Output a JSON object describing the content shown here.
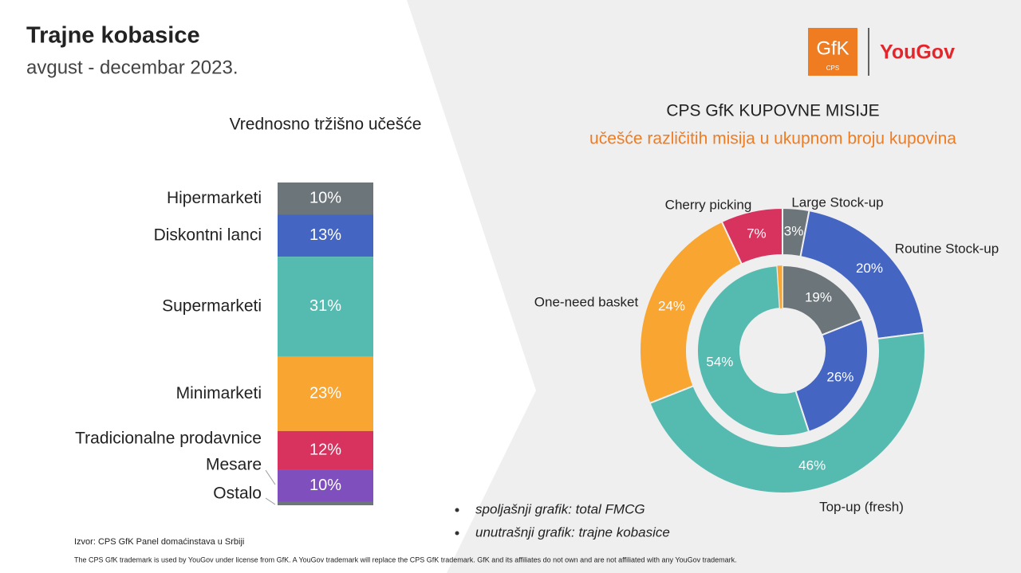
{
  "header": {
    "title": "Trajne kobasice",
    "subtitle": "avgust - decembar 2023."
  },
  "logos": {
    "gfk": "GfK",
    "cps": "CPS",
    "yougov": "YouGov"
  },
  "chart_data": [
    {
      "type": "stacked_bar",
      "title": "Vrednosno tržišno učešće",
      "categories": [
        "Hipermarketi",
        "Diskontni lanci",
        "Supermarketi",
        "Minimarketi",
        "Tradicionalne prodavnice",
        "Mesare",
        "Ostalo"
      ],
      "values": [
        10,
        13,
        31,
        23,
        12,
        10,
        1
      ],
      "value_labels": [
        "10%",
        "13%",
        "31%",
        "23%",
        "12%",
        "10%",
        null
      ],
      "colors": [
        "#6c757a",
        "#4565c2",
        "#55bbb0",
        "#f8a531",
        "#d8325e",
        "#7f4fbd",
        "#6c757a"
      ]
    },
    {
      "type": "donut",
      "title": "CPS GfK KUPOVNE MISIJE",
      "subtitle": "učešće različitih misija u ukupnom broju kupovina",
      "categories": [
        "Large Stock-up",
        "Routine Stock-up",
        "Top-up (fresh)",
        "One-need basket",
        "Cherry picking"
      ],
      "colors": [
        "#6c757a",
        "#4565c2",
        "#55bbb0",
        "#f8a531",
        "#d8325e"
      ],
      "series": [
        {
          "name": "spoljašnji grafik: total FMCG",
          "values": [
            3,
            20,
            46,
            24,
            7
          ],
          "value_labels": [
            "3%",
            "20%",
            "46%",
            "24%",
            "7%"
          ]
        },
        {
          "name": "unutrašnji grafik: trajne kobasice",
          "values": [
            19,
            26,
            54,
            1,
            0
          ],
          "value_labels": [
            "19%",
            "26%",
            "54%",
            null,
            null
          ]
        }
      ]
    }
  ],
  "source": "Izvor: CPS GfK Panel domaćinstava u Srbiji",
  "disclaimer": "The CPS GfK trademark is used by YouGov under license from GfK. A YouGov trademark will replace the CPS GfK trademark. GfK and its affiliates do not own and are not affiliated with any YouGov trademark."
}
